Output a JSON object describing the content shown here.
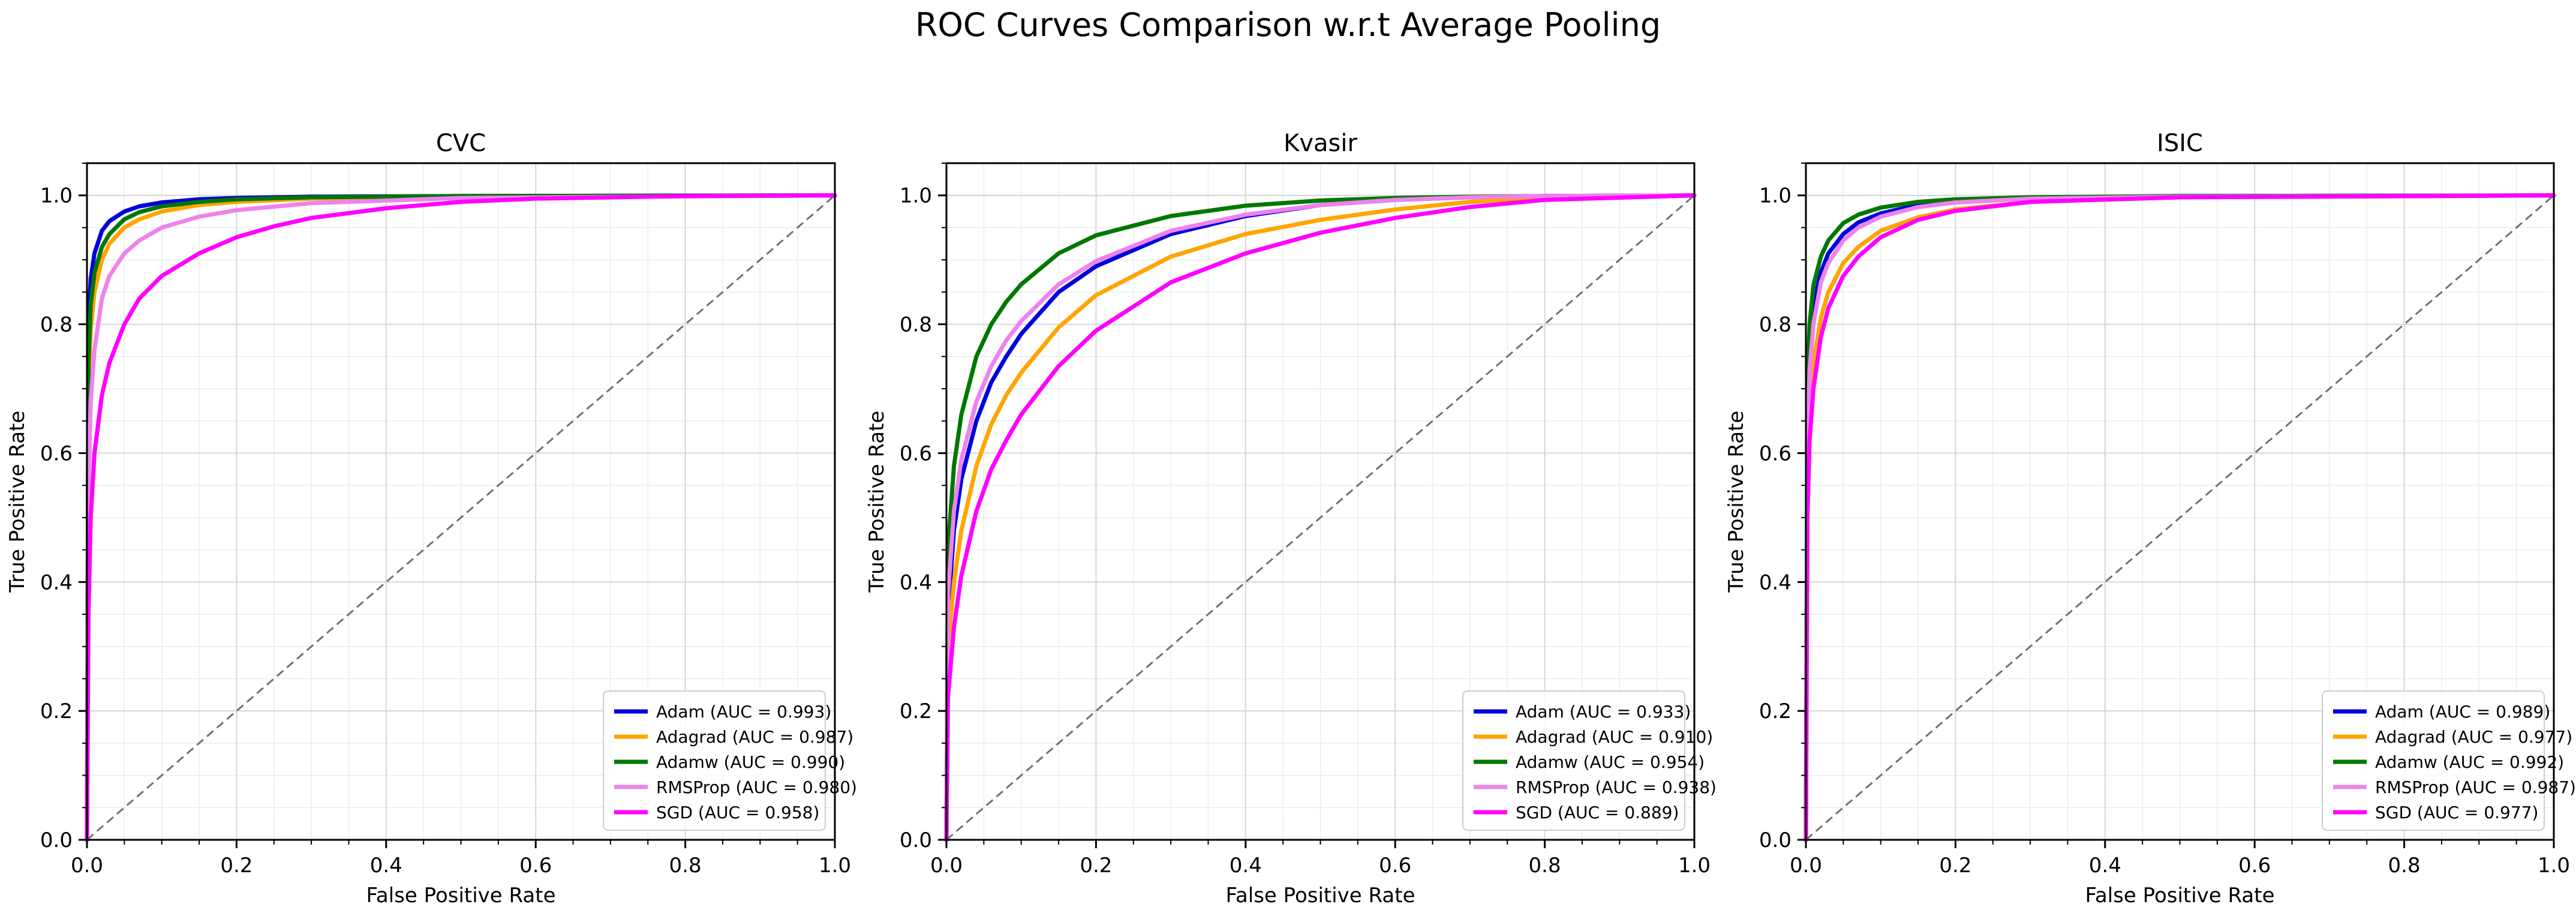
{
  "figure": {
    "title": "ROC Curves Comparison w.r.t Average Pooling"
  },
  "colors": {
    "Adam": "#0000dd",
    "Adagrad": "#ffa500",
    "Adamw": "#007700",
    "RMSProp": "#ee82ee",
    "SGD": "#ff00ff",
    "diagonal": "#707070"
  },
  "chart_data": [
    {
      "type": "line",
      "title": "CVC",
      "xlabel": "False Positive Rate",
      "ylabel": "True Positive Rate",
      "xlim": [
        0.0,
        1.0
      ],
      "ylim": [
        0.0,
        1.05
      ],
      "xticks": [
        "0.0",
        "0.2",
        "0.4",
        "0.6",
        "0.8",
        "1.0"
      ],
      "yticks": [
        "0.0",
        "0.2",
        "0.4",
        "0.6",
        "0.8",
        "1.0"
      ],
      "grid": true,
      "legend_position": "lower-right",
      "diagonal": true,
      "series": [
        {
          "name": "Adam",
          "label": "Adam (AUC = 0.993)",
          "color": "#0000dd",
          "x": [
            0,
            0.002,
            0.005,
            0.01,
            0.02,
            0.03,
            0.05,
            0.07,
            0.1,
            0.15,
            0.2,
            0.3,
            0.5,
            1.0
          ],
          "y": [
            0,
            0.8,
            0.87,
            0.91,
            0.945,
            0.96,
            0.975,
            0.983,
            0.989,
            0.994,
            0.996,
            0.998,
            0.999,
            1.0
          ]
        },
        {
          "name": "Adagrad",
          "label": "Adagrad (AUC = 0.987)",
          "color": "#ffa500",
          "x": [
            0,
            0.002,
            0.005,
            0.01,
            0.02,
            0.03,
            0.05,
            0.07,
            0.1,
            0.15,
            0.2,
            0.3,
            0.5,
            1.0
          ],
          "y": [
            0,
            0.7,
            0.79,
            0.85,
            0.9,
            0.925,
            0.95,
            0.963,
            0.975,
            0.985,
            0.99,
            0.995,
            0.998,
            1.0
          ]
        },
        {
          "name": "Adamw",
          "label": "Adamw (AUC = 0.990)",
          "color": "#007700",
          "x": [
            0,
            0.002,
            0.005,
            0.01,
            0.02,
            0.03,
            0.05,
            0.07,
            0.1,
            0.15,
            0.2,
            0.3,
            0.5,
            1.0
          ],
          "y": [
            0,
            0.74,
            0.83,
            0.88,
            0.92,
            0.94,
            0.963,
            0.974,
            0.983,
            0.99,
            0.994,
            0.997,
            0.999,
            1.0
          ]
        },
        {
          "name": "RMSProp",
          "label": "RMSProp (AUC = 0.980)",
          "color": "#ee82ee",
          "x": [
            0,
            0.002,
            0.005,
            0.01,
            0.02,
            0.03,
            0.05,
            0.07,
            0.1,
            0.15,
            0.2,
            0.3,
            0.5,
            1.0
          ],
          "y": [
            0,
            0.55,
            0.68,
            0.76,
            0.84,
            0.875,
            0.91,
            0.93,
            0.95,
            0.967,
            0.977,
            0.988,
            0.996,
            1.0
          ]
        },
        {
          "name": "SGD",
          "label": "SGD (AUC = 0.958)",
          "color": "#ff00ff",
          "x": [
            0,
            0.002,
            0.005,
            0.01,
            0.02,
            0.03,
            0.05,
            0.07,
            0.1,
            0.15,
            0.2,
            0.25,
            0.3,
            0.4,
            0.5,
            0.6,
            0.8,
            1.0
          ],
          "y": [
            0,
            0.35,
            0.5,
            0.6,
            0.69,
            0.74,
            0.8,
            0.84,
            0.875,
            0.91,
            0.935,
            0.952,
            0.965,
            0.98,
            0.99,
            0.995,
            0.999,
            1.0
          ]
        }
      ]
    },
    {
      "type": "line",
      "title": "Kvasir",
      "xlabel": "False Positive Rate",
      "ylabel": "True Positive Rate",
      "xlim": [
        0.0,
        1.0
      ],
      "ylim": [
        0.0,
        1.05
      ],
      "xticks": [
        "0.0",
        "0.2",
        "0.4",
        "0.6",
        "0.8",
        "1.0"
      ],
      "yticks": [
        "0.0",
        "0.2",
        "0.4",
        "0.6",
        "0.8",
        "1.0"
      ],
      "grid": true,
      "legend_position": "lower-right",
      "diagonal": true,
      "series": [
        {
          "name": "Adam",
          "label": "Adam (AUC = 0.933)",
          "color": "#0000dd",
          "x": [
            0,
            0.002,
            0.01,
            0.02,
            0.04,
            0.06,
            0.08,
            0.1,
            0.15,
            0.2,
            0.3,
            0.4,
            0.5,
            0.6,
            0.7,
            0.8,
            1.0
          ],
          "y": [
            0,
            0.35,
            0.48,
            0.56,
            0.65,
            0.71,
            0.75,
            0.785,
            0.85,
            0.89,
            0.94,
            0.968,
            0.985,
            0.993,
            0.997,
            0.999,
            1.0
          ]
        },
        {
          "name": "Adagrad",
          "label": "Adagrad (AUC = 0.910)",
          "color": "#ffa500",
          "x": [
            0,
            0.002,
            0.01,
            0.02,
            0.04,
            0.06,
            0.08,
            0.1,
            0.15,
            0.2,
            0.3,
            0.4,
            0.5,
            0.6,
            0.7,
            0.8,
            1.0
          ],
          "y": [
            0,
            0.3,
            0.4,
            0.48,
            0.58,
            0.645,
            0.69,
            0.725,
            0.795,
            0.845,
            0.905,
            0.94,
            0.962,
            0.978,
            0.99,
            0.996,
            1.0
          ]
        },
        {
          "name": "Adamw",
          "label": "Adamw (AUC = 0.954)",
          "color": "#007700",
          "x": [
            0,
            0.002,
            0.01,
            0.02,
            0.04,
            0.06,
            0.08,
            0.1,
            0.15,
            0.2,
            0.3,
            0.4,
            0.5,
            0.6,
            0.7,
            0.8,
            1.0
          ],
          "y": [
            0,
            0.45,
            0.58,
            0.66,
            0.75,
            0.8,
            0.835,
            0.862,
            0.91,
            0.938,
            0.968,
            0.984,
            0.992,
            0.996,
            0.998,
            0.999,
            1.0
          ]
        },
        {
          "name": "RMSProp",
          "label": "RMSProp (AUC = 0.938)",
          "color": "#ee82ee",
          "x": [
            0,
            0.002,
            0.01,
            0.02,
            0.04,
            0.06,
            0.08,
            0.1,
            0.15,
            0.2,
            0.3,
            0.4,
            0.5,
            0.6,
            0.7,
            0.8,
            1.0
          ],
          "y": [
            0,
            0.38,
            0.51,
            0.59,
            0.68,
            0.735,
            0.775,
            0.805,
            0.862,
            0.898,
            0.945,
            0.97,
            0.985,
            0.993,
            0.997,
            0.999,
            1.0
          ]
        },
        {
          "name": "SGD",
          "label": "SGD (AUC = 0.889)",
          "color": "#ff00ff",
          "x": [
            0,
            0.002,
            0.01,
            0.02,
            0.04,
            0.06,
            0.08,
            0.1,
            0.15,
            0.2,
            0.3,
            0.4,
            0.5,
            0.6,
            0.7,
            0.8,
            1.0
          ],
          "y": [
            0,
            0.22,
            0.33,
            0.41,
            0.51,
            0.575,
            0.62,
            0.66,
            0.735,
            0.79,
            0.865,
            0.91,
            0.942,
            0.965,
            0.982,
            0.993,
            1.0
          ]
        }
      ]
    },
    {
      "type": "line",
      "title": "ISIC",
      "xlabel": "False Positive Rate",
      "ylabel": "True Positive Rate",
      "xlim": [
        0.0,
        1.0
      ],
      "ylim": [
        0.0,
        1.05
      ],
      "xticks": [
        "0.0",
        "0.2",
        "0.4",
        "0.6",
        "0.8",
        "1.0"
      ],
      "yticks": [
        "0.0",
        "0.2",
        "0.4",
        "0.6",
        "0.8",
        "1.0"
      ],
      "grid": true,
      "legend_position": "lower-right",
      "diagonal": true,
      "series": [
        {
          "name": "Adam",
          "label": "Adam (AUC = 0.989)",
          "color": "#0000dd",
          "x": [
            0,
            0.002,
            0.005,
            0.01,
            0.02,
            0.03,
            0.05,
            0.07,
            0.1,
            0.15,
            0.2,
            0.3,
            0.5,
            1.0
          ],
          "y": [
            0,
            0.65,
            0.76,
            0.83,
            0.88,
            0.91,
            0.94,
            0.958,
            0.972,
            0.985,
            0.991,
            0.996,
            0.999,
            1.0
          ]
        },
        {
          "name": "Adagrad",
          "label": "Adagrad (AUC = 0.977)",
          "color": "#ffa500",
          "x": [
            0,
            0.002,
            0.005,
            0.01,
            0.02,
            0.03,
            0.05,
            0.07,
            0.1,
            0.15,
            0.2,
            0.3,
            0.5,
            1.0
          ],
          "y": [
            0,
            0.55,
            0.66,
            0.74,
            0.81,
            0.85,
            0.895,
            0.92,
            0.945,
            0.966,
            0.978,
            0.99,
            0.997,
            1.0
          ]
        },
        {
          "name": "Adamw",
          "label": "Adamw (AUC = 0.992)",
          "color": "#007700",
          "x": [
            0,
            0.002,
            0.005,
            0.01,
            0.02,
            0.03,
            0.05,
            0.07,
            0.1,
            0.15,
            0.2,
            0.3,
            0.5,
            1.0
          ],
          "y": [
            0,
            0.7,
            0.8,
            0.86,
            0.905,
            0.93,
            0.957,
            0.97,
            0.981,
            0.99,
            0.994,
            0.997,
            0.999,
            1.0
          ]
        },
        {
          "name": "RMSProp",
          "label": "RMSProp (AUC = 0.987)",
          "color": "#ee82ee",
          "x": [
            0,
            0.002,
            0.005,
            0.01,
            0.02,
            0.03,
            0.05,
            0.07,
            0.1,
            0.15,
            0.2,
            0.3,
            0.5,
            1.0
          ],
          "y": [
            0,
            0.62,
            0.73,
            0.8,
            0.865,
            0.895,
            0.93,
            0.95,
            0.967,
            0.982,
            0.989,
            0.995,
            0.998,
            1.0
          ]
        },
        {
          "name": "SGD",
          "label": "SGD (AUC = 0.977)",
          "color": "#ff00ff",
          "x": [
            0,
            0.002,
            0.005,
            0.01,
            0.02,
            0.03,
            0.05,
            0.07,
            0.1,
            0.15,
            0.2,
            0.3,
            0.5,
            1.0
          ],
          "y": [
            0,
            0.5,
            0.62,
            0.7,
            0.78,
            0.825,
            0.875,
            0.905,
            0.935,
            0.962,
            0.976,
            0.99,
            0.997,
            1.0
          ]
        }
      ]
    }
  ]
}
